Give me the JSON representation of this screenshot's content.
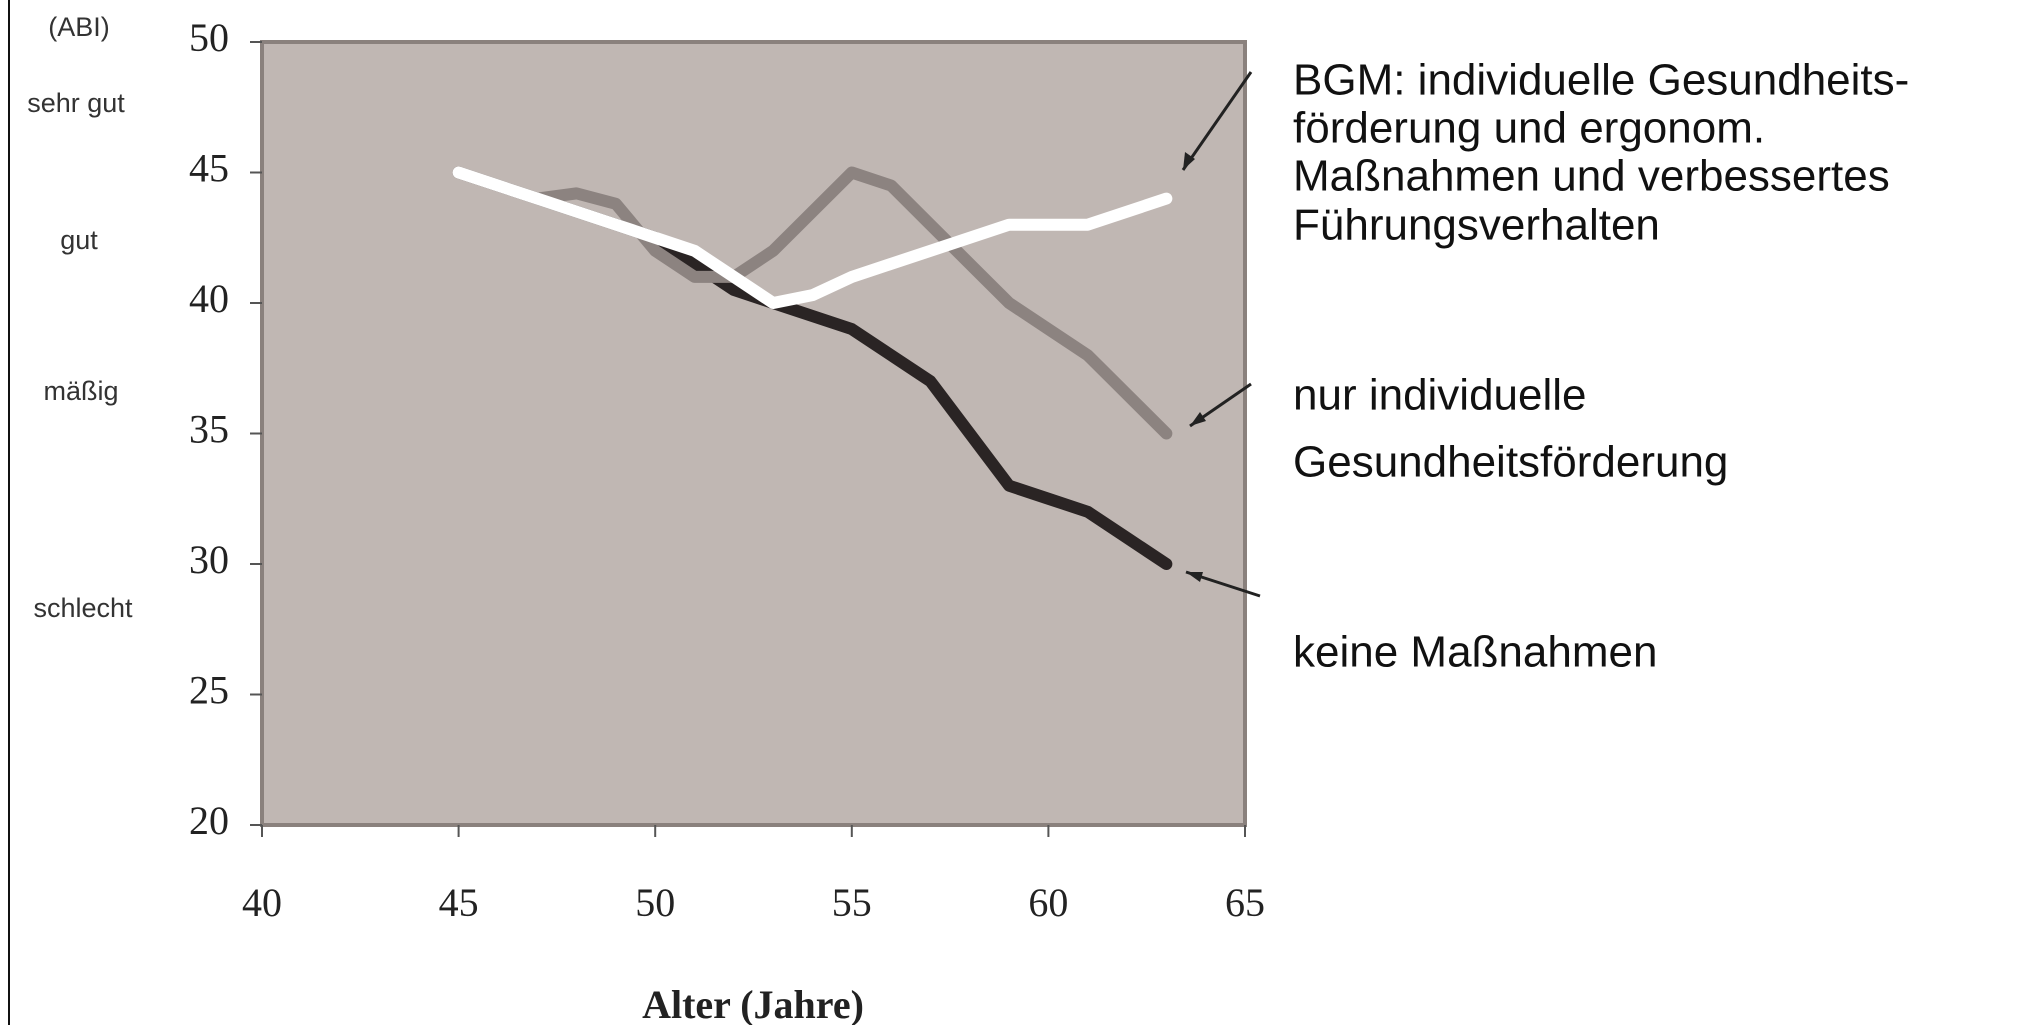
{
  "chart_data": {
    "type": "line",
    "xlabel": "Alter (Jahre)",
    "xlim": [
      40,
      65
    ],
    "xticks": [
      40,
      45,
      50,
      55,
      60,
      65
    ],
    "ylim": [
      20,
      50
    ],
    "yticks": [
      20,
      25,
      30,
      35,
      40,
      45,
      50
    ],
    "grid": false,
    "annotations": [
      "(ABI)",
      "sehr gut",
      "gut",
      "mäßig",
      "schlecht"
    ],
    "series": [
      {
        "legend_lines": [
          "keine Maßnahmen"
        ],
        "color": "#2a2424",
        "x": [
          45,
          47,
          49,
          50,
          51,
          52,
          53,
          55,
          57,
          58,
          59,
          60,
          61,
          62,
          63
        ],
        "values": [
          45,
          44,
          43,
          42.5,
          41.5,
          40.5,
          40,
          39,
          37,
          35,
          33,
          32.5,
          32,
          31,
          30
        ]
      },
      {
        "legend_lines": [
          "nur individuelle",
          "Gesundheitsförderung"
        ],
        "color": "#8c8380",
        "x": [
          45,
          47,
          48,
          49,
          50,
          51,
          52,
          53,
          54,
          55,
          56,
          57,
          58,
          59,
          60,
          61,
          62,
          63
        ],
        "values": [
          45,
          44,
          44.2,
          43.8,
          42,
          41,
          41,
          42,
          43.5,
          45,
          44.5,
          43,
          41.5,
          40,
          39,
          38,
          36.5,
          35
        ]
      },
      {
        "legend_lines": [
          "BGM: individuelle Gesundheits-",
          "förderung und ergonom.",
          "Maßnahmen und verbessertes",
          "Führungsverhalten"
        ],
        "color": "#ffffff",
        "x": [
          45,
          47,
          49,
          50,
          51,
          52,
          53,
          54,
          55,
          57,
          59,
          61,
          63
        ],
        "values": [
          45,
          44,
          43,
          42.5,
          42,
          41,
          40,
          40.3,
          41,
          42,
          43,
          43,
          44
        ]
      }
    ]
  }
}
